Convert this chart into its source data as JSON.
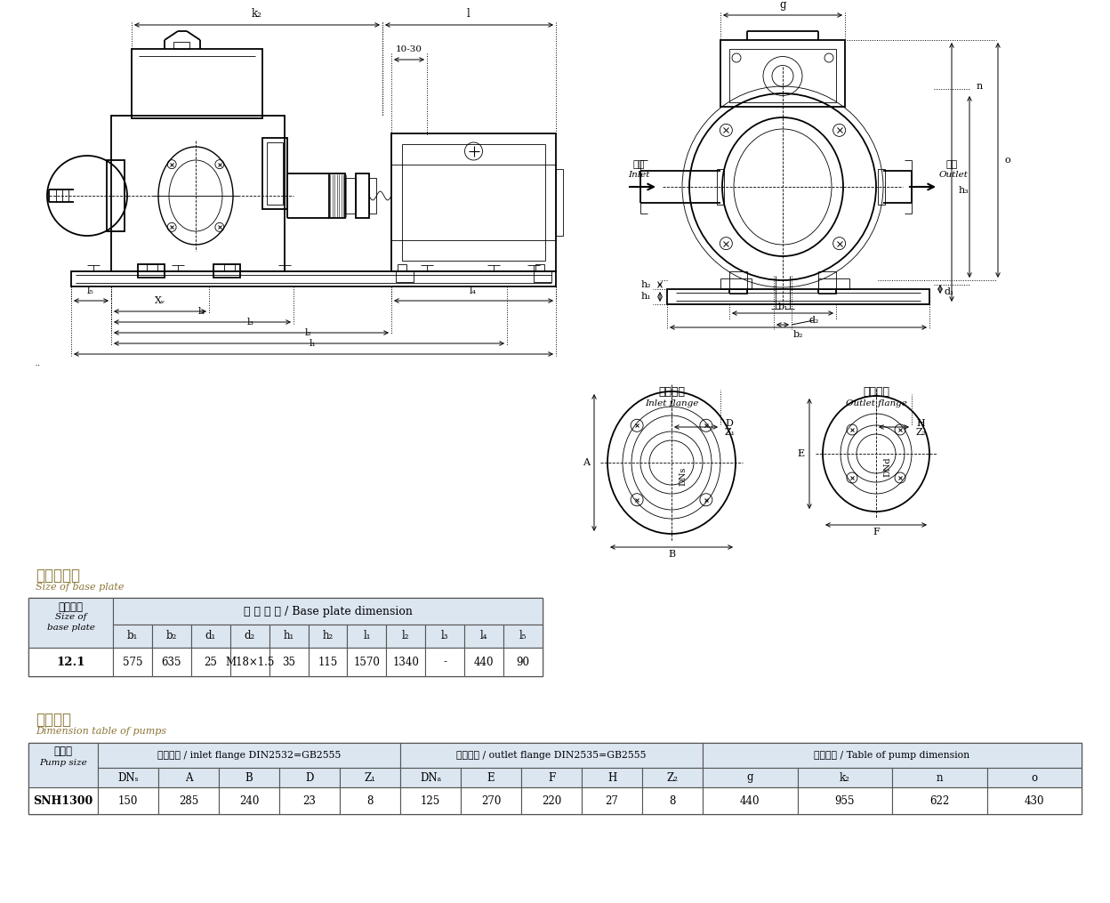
{
  "bg_color": "#ffffff",
  "line_color": "#000000",
  "title_color": "#8B7536",
  "table_header_bg": "#dce6f1",
  "title1_zh": "底座规格表",
  "title1_en": "Size of base plate",
  "title2_zh": "泵尺尺表",
  "title2_en": "Dimension table of pumps",
  "table1_header2": "底 座 尺 寸 / Base plate dimension",
  "table1_cols": [
    "b₁",
    "b₂",
    "d₁",
    "d₂",
    "h₁",
    "h₂",
    "l₁",
    "l₂",
    "l₃",
    "l₄",
    "l₅"
  ],
  "table1_row": [
    "12.1",
    "575",
    "635",
    "25",
    "M18×1.5",
    "35",
    "115",
    "1570",
    "1340",
    "-",
    "440",
    "90"
  ],
  "table2_header2": "进口法兰 / inlet flange DIN2532=GB2555",
  "table2_header3": "出口法兰 / outlet flange DIN2535=GB2555",
  "table2_header4": "泵尺尺表 / Table of pump dimension",
  "table2_cols1": [
    "DNₛ",
    "A",
    "B",
    "D",
    "Z₁"
  ],
  "table2_cols2": [
    "DNₐ",
    "E",
    "F",
    "H",
    "Z₂"
  ],
  "table2_cols3": [
    "g",
    "k₂",
    "n",
    "o"
  ],
  "table2_row": [
    "SNH1300",
    "150",
    "285",
    "240",
    "23",
    "8",
    "125",
    "270",
    "220",
    "27",
    "8",
    "440",
    "955",
    "622",
    "430"
  ]
}
